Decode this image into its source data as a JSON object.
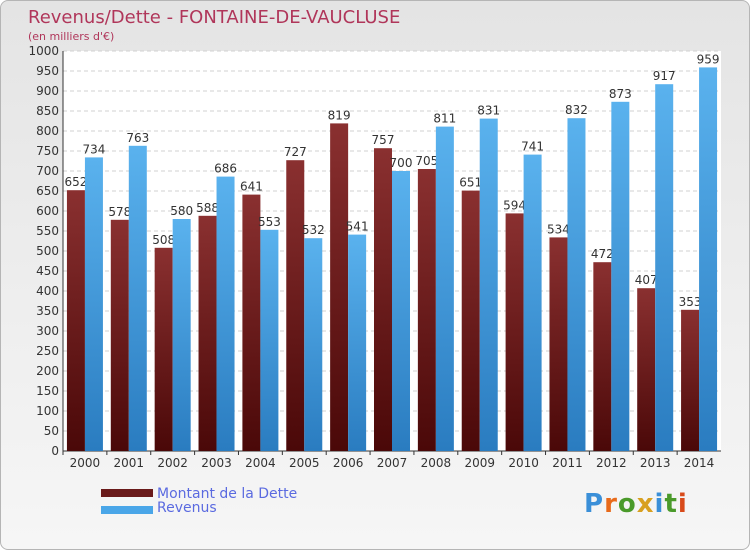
{
  "header": {
    "title": "Revenus/Dette - FONTAINE-DE-VAUCLUSE",
    "subtitle": "(en milliers d'€)"
  },
  "chart_data": {
    "type": "bar",
    "categories": [
      "2000",
      "2001",
      "2002",
      "2003",
      "2004",
      "2005",
      "2006",
      "2007",
      "2008",
      "2009",
      "2010",
      "2011",
      "2012",
      "2013",
      "2014"
    ],
    "series": [
      {
        "name": "Montant de la Dette",
        "values": [
          652,
          578,
          508,
          588,
          641,
          727,
          819,
          757,
          705,
          651,
          594,
          534,
          472,
          407,
          353
        ],
        "color": "#7a2626"
      },
      {
        "name": "Revenus",
        "values": [
          734,
          763,
          580,
          686,
          553,
          532,
          541,
          700,
          811,
          831,
          741,
          832,
          873,
          917,
          959
        ],
        "color": "#4aa6e8"
      }
    ],
    "ylim": [
      0,
      1000
    ],
    "ytick_step": 50,
    "grid": true,
    "legend": "bottom-left"
  },
  "legend": {
    "items": [
      {
        "label": "Montant de la Dette",
        "color": "#6a1a1a"
      },
      {
        "label": "Revenus",
        "color": "#4aa6e8"
      }
    ]
  },
  "logo": {
    "letters": [
      "P",
      "r",
      "o",
      "x",
      "i",
      "t",
      "i"
    ],
    "colors": [
      "#3a8fd8",
      "#e86a1a",
      "#4a9a2a",
      "#d8a020",
      "#3a8fd8",
      "#4a9a2a",
      "#d84a1a"
    ]
  }
}
